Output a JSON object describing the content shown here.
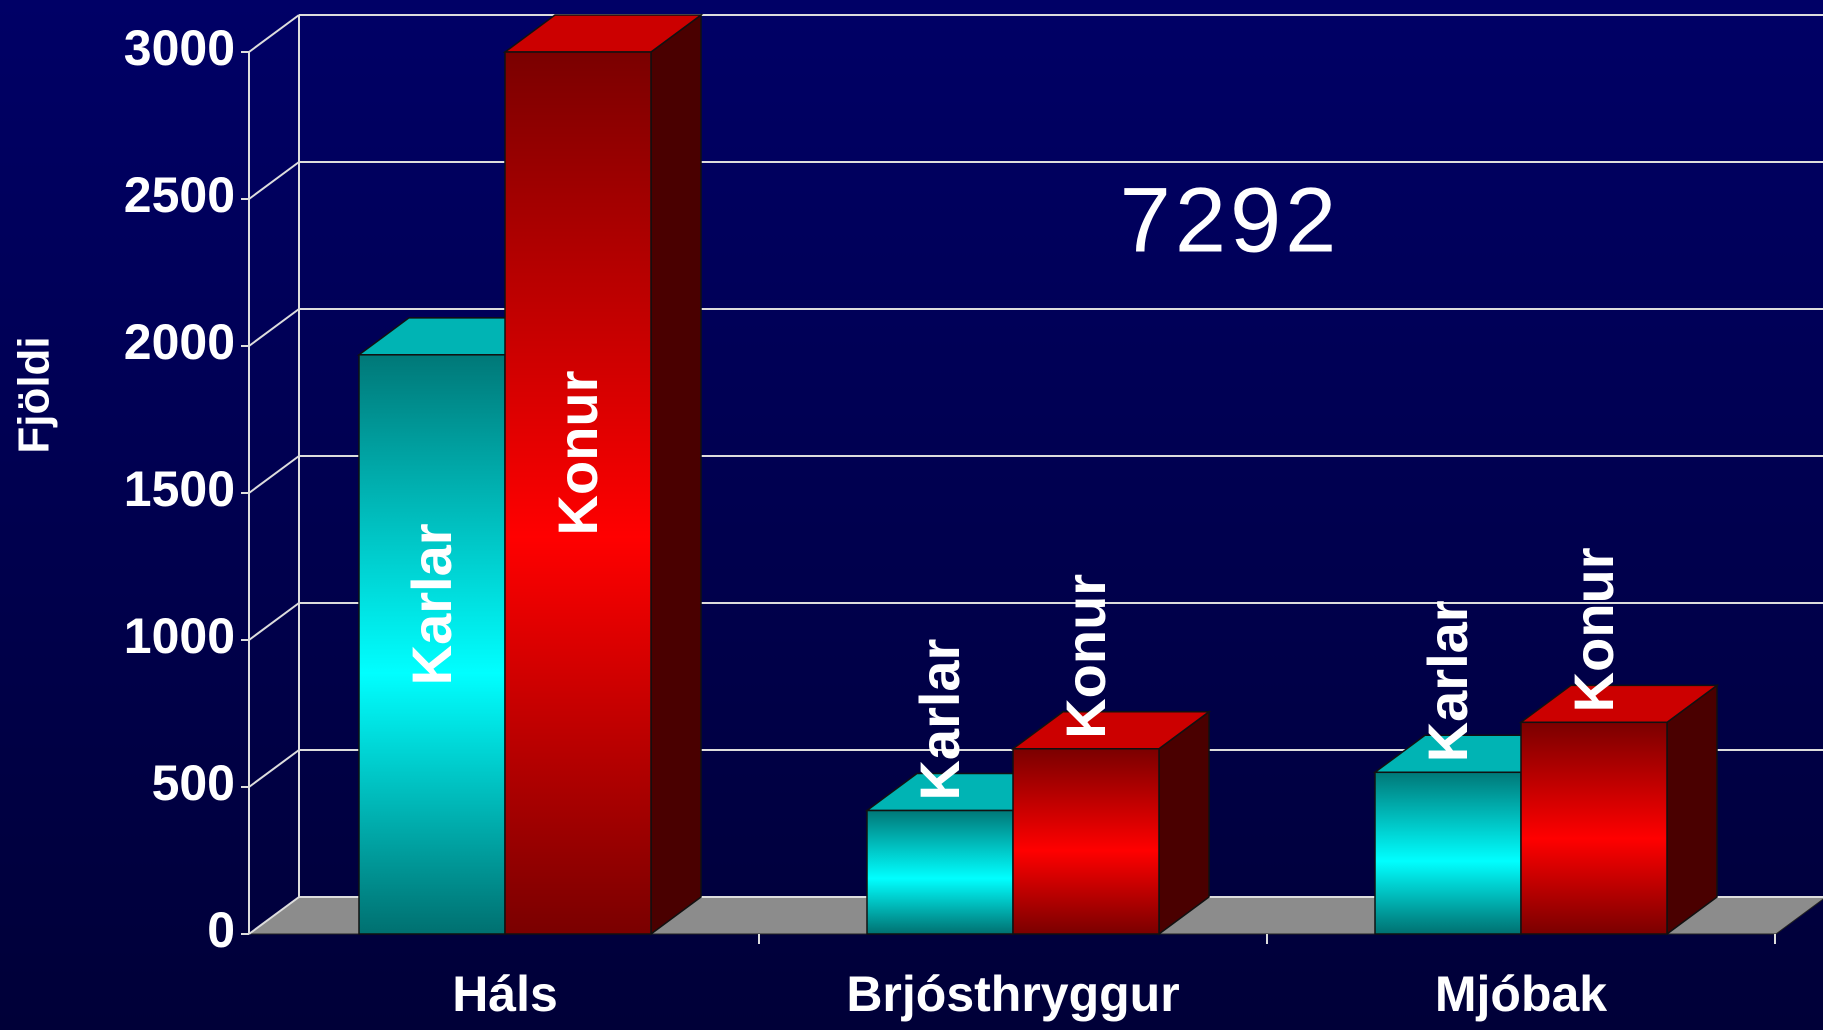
{
  "chart_data": {
    "type": "bar3d",
    "y_label": "Fjöldi",
    "annotation": "7292",
    "categories": [
      "Háls",
      "Brjósthryggur",
      "Mjóbak"
    ],
    "series": [
      {
        "name": "Karlar",
        "color": "#00ffff",
        "values": [
          1970,
          420,
          550
        ]
      },
      {
        "name": "Konur",
        "color": "#ff0000",
        "values": [
          3000,
          630,
          720
        ]
      }
    ],
    "ylim": [
      0,
      3000
    ],
    "yticks": [
      0,
      500,
      1000,
      1500,
      2000,
      2500,
      3000
    ],
    "grid": true
  }
}
